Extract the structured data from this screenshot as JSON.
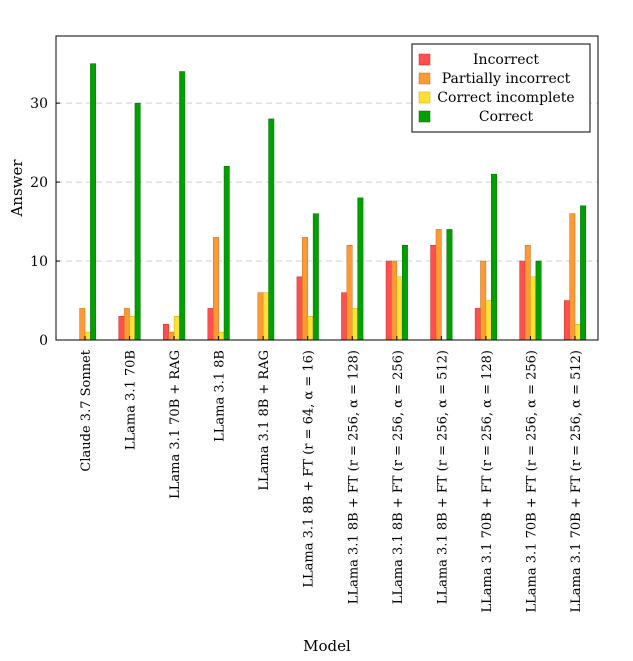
{
  "chart_data": {
    "type": "bar",
    "xlabel": "Model",
    "ylabel": "Answer",
    "ylim": [
      0,
      38.5
    ],
    "yticks": [
      0,
      10,
      20,
      30
    ],
    "grid": "horizontal-dashed",
    "legend_position": "top-right",
    "categories": [
      "Claude 3.7 Sonnet",
      "LLama 3.1 70B",
      "LLama 3.1 70B + RAG",
      "LLama 3.1 8B",
      "LLama 3.1 8B + RAG",
      "LLama 3.1 8B + FT (r = 64, α = 16)",
      "LLama 3.1 8B + FT (r = 256, α = 128)",
      "LLama 3.1 8B + FT (r = 256, α = 256)",
      "LLama 3.1 8B + FT (r = 256, α = 512)",
      "LLama 3.1 70B + FT (r = 256, α = 128)",
      "LLama 3.1 70B + FT (r = 256, α = 256)",
      "LLama 3.1 70B + FT (r = 256, α = 512)"
    ],
    "series": [
      {
        "name": "Incorrect",
        "color": "#ff4f4f",
        "edge": "#c03030",
        "values": [
          0,
          3,
          2,
          4,
          0,
          8,
          6,
          10,
          12,
          4,
          10,
          5
        ]
      },
      {
        "name": "Partially incorrect",
        "color": "#ff9933",
        "edge": "#c07020",
        "values": [
          4,
          4,
          1,
          13,
          6,
          13,
          12,
          10,
          14,
          10,
          12,
          16
        ]
      },
      {
        "name": "Correct incomplete",
        "color": "#ffe033",
        "edge": "#c0a820",
        "values": [
          1,
          3,
          3,
          1,
          6,
          3,
          4,
          8,
          0,
          5,
          8,
          2
        ]
      },
      {
        "name": "Correct",
        "color": "#00a000",
        "edge": "#007000",
        "values": [
          35,
          30,
          34,
          22,
          28,
          16,
          18,
          12,
          14,
          21,
          10,
          17
        ]
      }
    ]
  }
}
